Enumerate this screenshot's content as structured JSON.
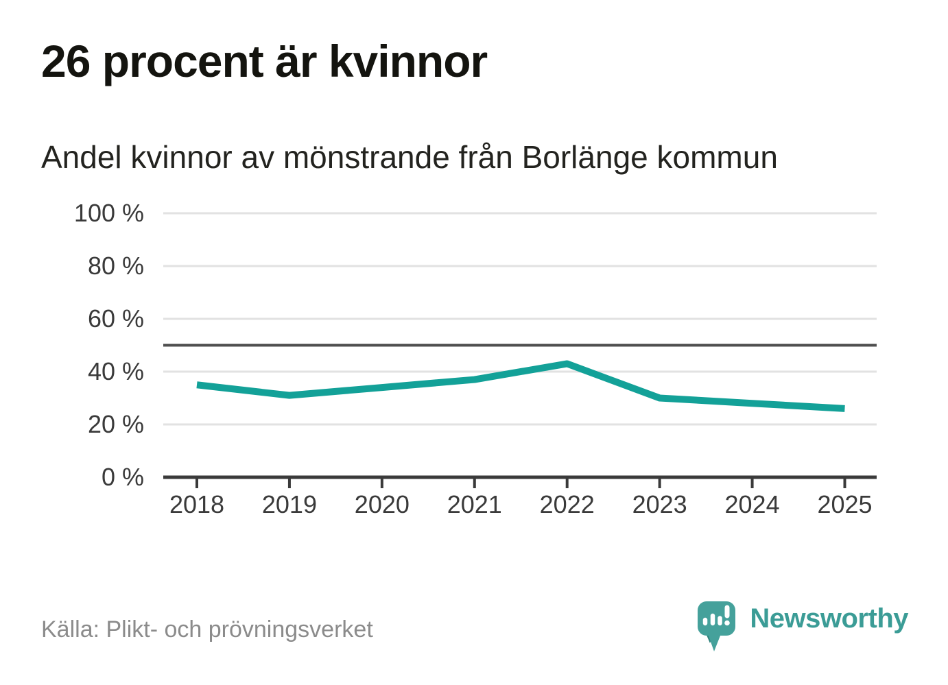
{
  "title": "26 procent är kvinnor",
  "subtitle": "Andel kvinnor av mönstrande från Borlänge kommun",
  "source": "Källa: Plikt- och prövningsverket",
  "logo": {
    "wordmark": "Newsworthy"
  },
  "colors": {
    "line": "#13a198",
    "grid": "#e2e2e2",
    "axis": "#3a3a3a",
    "reference_line": "#4f4f4f",
    "tick_label": "#3a3a3a",
    "title_text": "#14140f",
    "subtitle_text": "#23231f",
    "source_text": "#8b8b8b",
    "logo_bubble": "#45a19b",
    "logo_bubble_shadow": "#2e837d",
    "wordmark_text": "#3b9c96"
  },
  "chart_data": {
    "type": "line",
    "title": "26 procent är kvinnor",
    "subtitle": "Andel kvinnor av mönstrande från Borlänge kommun",
    "x": [
      "2018",
      "2019",
      "2020",
      "2021",
      "2022",
      "2023",
      "2024",
      "2025"
    ],
    "series": [
      {
        "name": "Andel kvinnor av mönstrande",
        "values": [
          35,
          31,
          34,
          37,
          43,
          30,
          28,
          26
        ]
      }
    ],
    "xlabel": "",
    "ylabel": "",
    "ylim": [
      0,
      100
    ],
    "y_ticks": [
      0,
      20,
      40,
      60,
      80,
      100
    ],
    "y_tick_labels": [
      "0 %",
      "20 %",
      "40 %",
      "60 %",
      "80 %",
      "100 %"
    ],
    "reference_line": 50,
    "grid": true,
    "legend": "none"
  }
}
